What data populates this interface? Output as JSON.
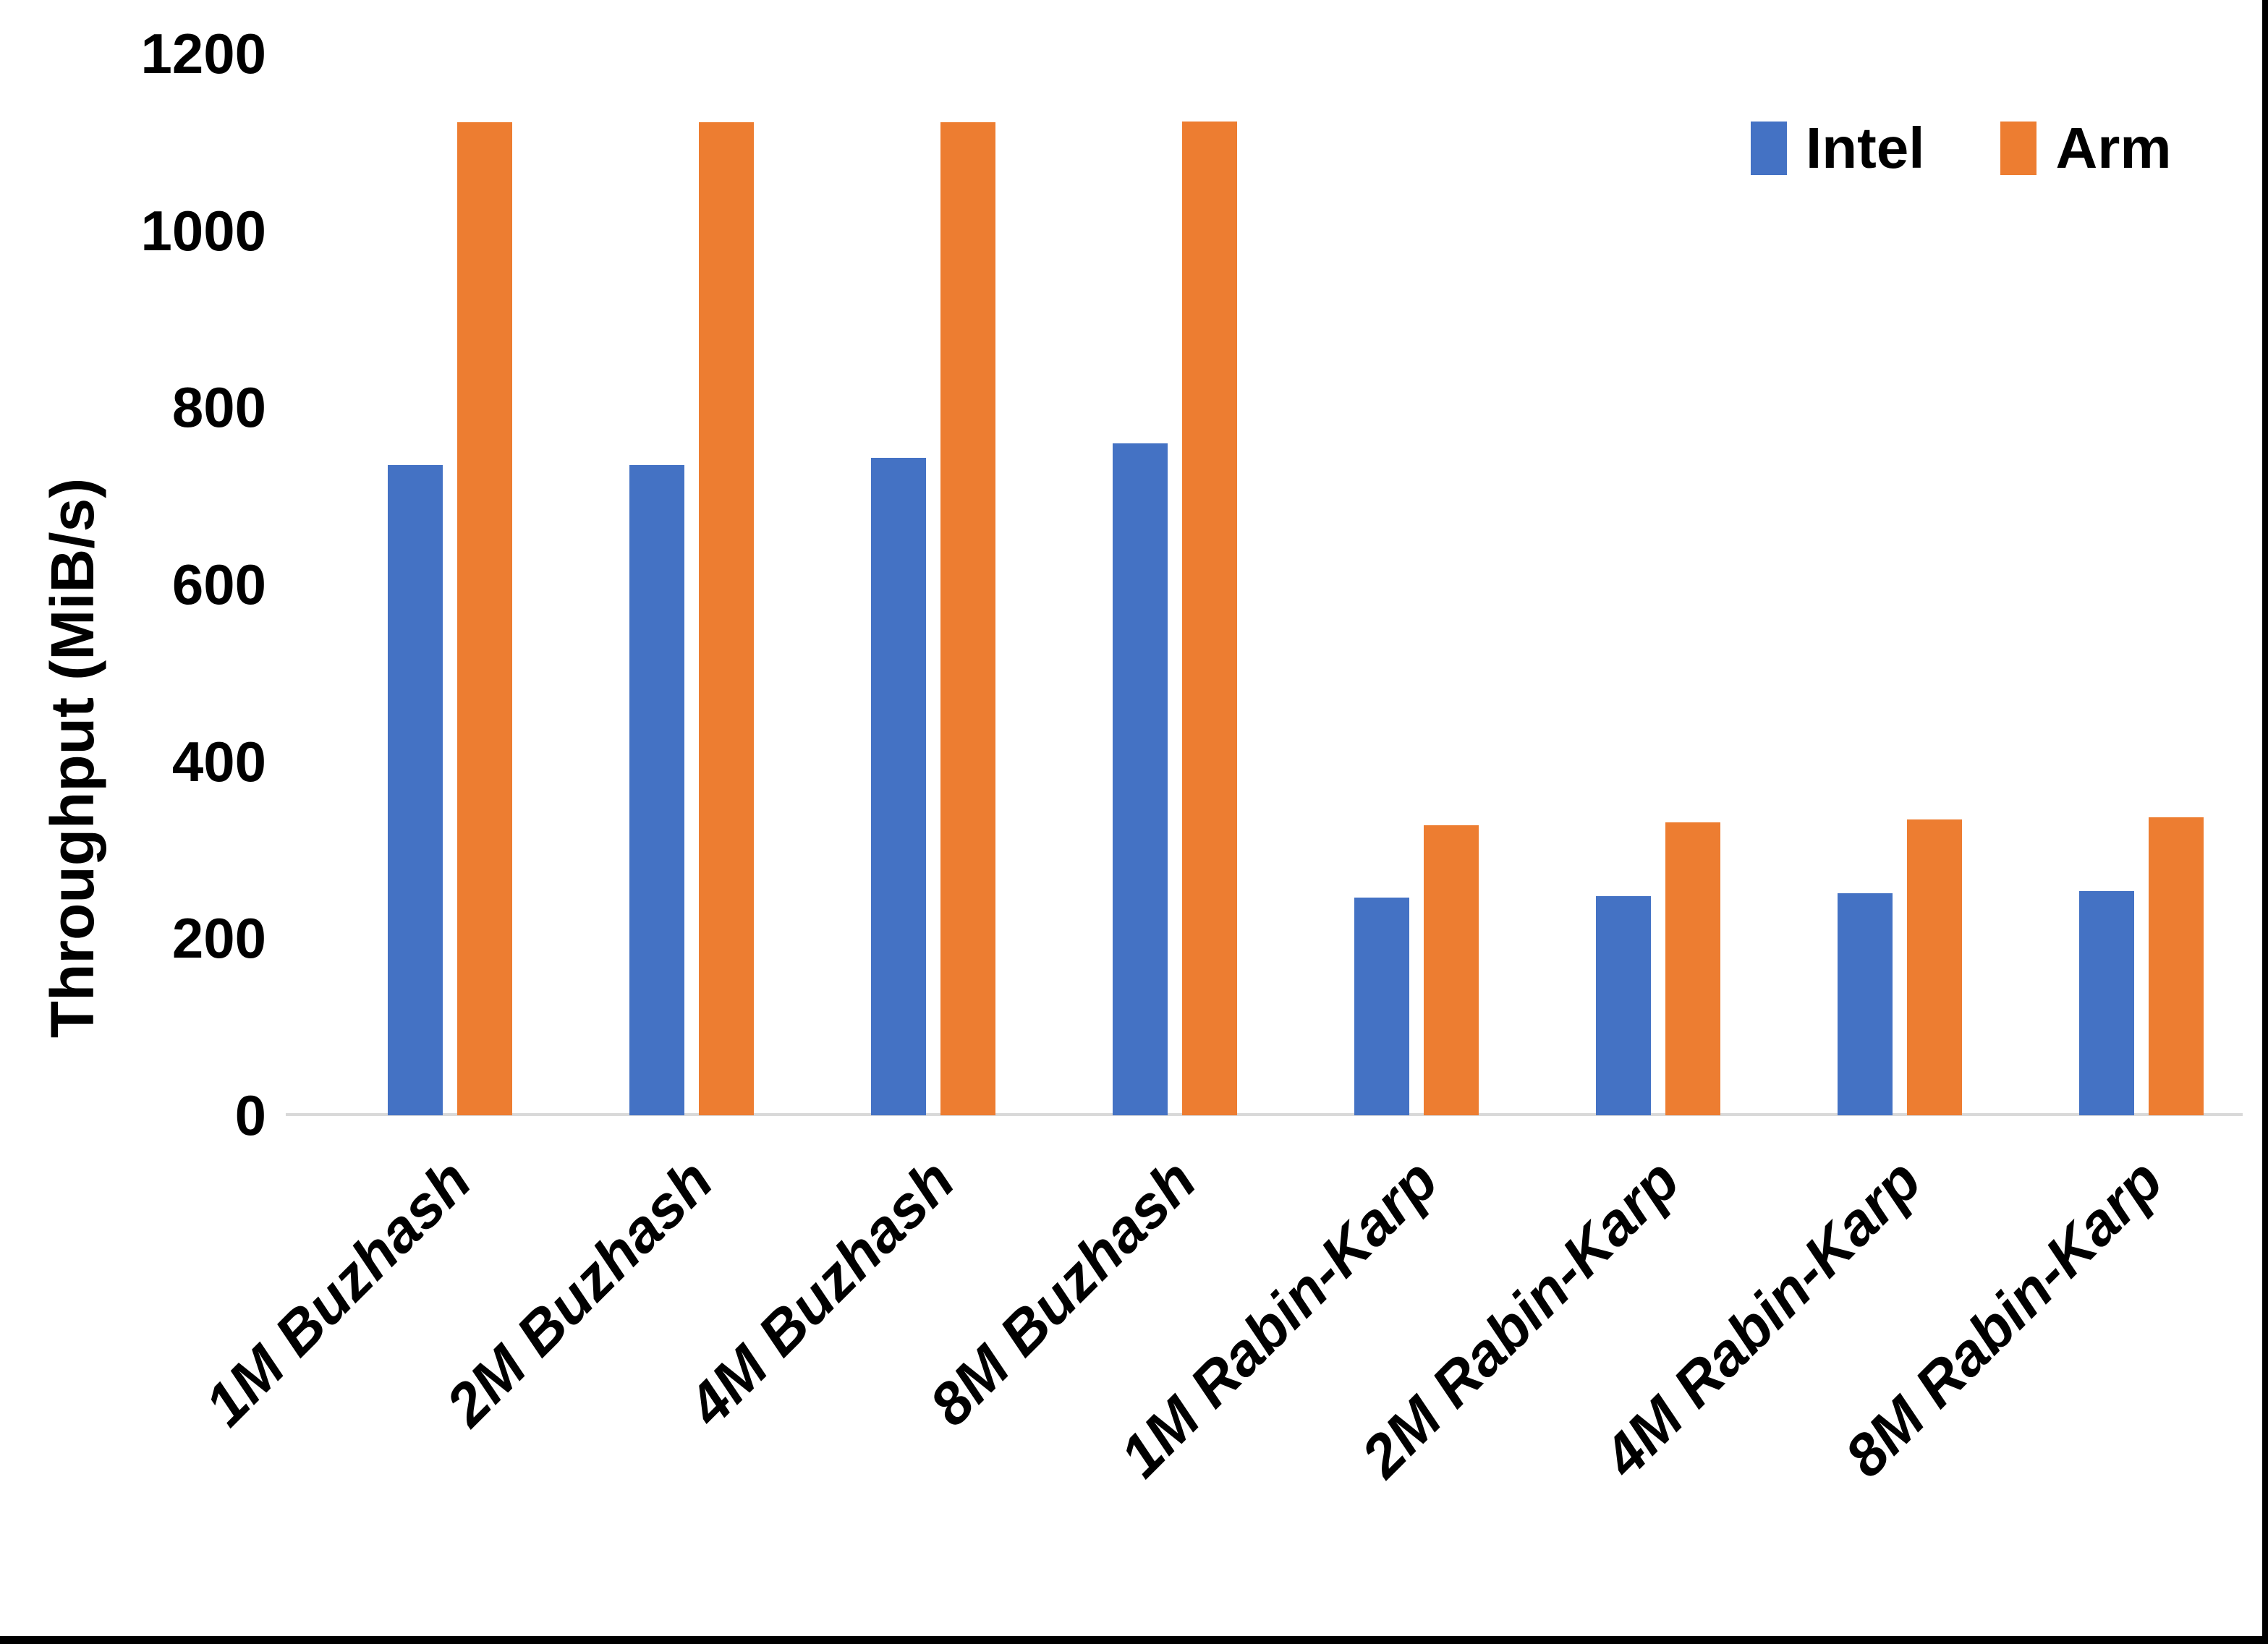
{
  "chart_data": {
    "type": "bar",
    "title": "",
    "xlabel": "",
    "ylabel": "Throughput (MiB/s)",
    "ylim": [
      0,
      1200
    ],
    "ytick_interval": 200,
    "yticks": [
      "0",
      "200",
      "400",
      "600",
      "800",
      "1000",
      "1200"
    ],
    "grid": false,
    "legend_position": "top-right",
    "categories": [
      "1M Buzhash",
      "2M Buzhash",
      "4M Buzhash",
      "8M Buzhash",
      "1M Rabin-Karp",
      "2M Rabin-Karp",
      "4M Rabin-Karp",
      "8M Rabin-Karp"
    ],
    "series": [
      {
        "name": "Intel",
        "color": "#4472C4",
        "values": [
          735,
          735,
          743,
          759,
          246,
          248,
          251,
          253
        ]
      },
      {
        "name": "Arm",
        "color": "#ED7D31",
        "values": [
          1122,
          1122,
          1122,
          1123,
          328,
          331,
          334,
          337
        ]
      }
    ]
  },
  "legend": {
    "items": [
      {
        "label": "Intel",
        "color": "#4472C4"
      },
      {
        "label": "Arm",
        "color": "#ED7D31"
      }
    ]
  },
  "axis": {
    "y_title": "Throughput (MiB/s)"
  },
  "colors": {
    "intel_blue": "#4472C4",
    "arm_orange": "#ED7D31",
    "axis_line": "#D9D9D9",
    "text": "#000000",
    "border": "#000000"
  }
}
